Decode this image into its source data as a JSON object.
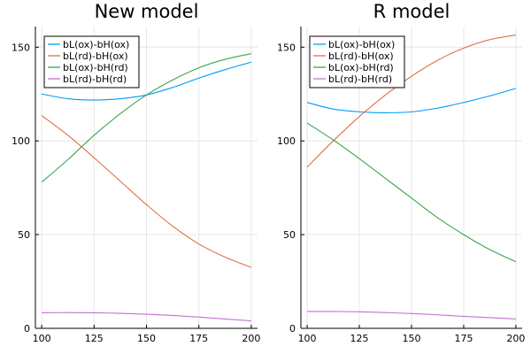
{
  "chart_data": [
    {
      "type": "line",
      "title": "New model",
      "xlim": [
        97,
        203
      ],
      "ylim": [
        0,
        161
      ],
      "xticks": [
        100,
        125,
        150,
        175,
        200
      ],
      "yticks": [
        0,
        50,
        100,
        150
      ],
      "legend_position": "top-left",
      "series": [
        {
          "name": "bL(ox)-bH(ox)",
          "color": "#009af9",
          "x": [
            100,
            112.5,
            125,
            137.5,
            150,
            162.5,
            175,
            187.5,
            200
          ],
          "y": [
            125,
            122.5,
            121.8,
            122.5,
            124.5,
            128.5,
            133.5,
            138,
            142
          ]
        },
        {
          "name": "bL(rd)-bH(ox)",
          "color": "#e26f46",
          "x": [
            100,
            112.5,
            125,
            137.5,
            150,
            162.5,
            175,
            187.5,
            200
          ],
          "y": [
            113.5,
            103,
            91,
            78.5,
            66,
            54.5,
            45,
            38,
            32.5
          ]
        },
        {
          "name": "bL(ox)-bH(rd)",
          "color": "#3da44d",
          "x": [
            100,
            112.5,
            125,
            137.5,
            150,
            162.5,
            175,
            187.5,
            200
          ],
          "y": [
            78,
            90,
            103,
            114.5,
            124.5,
            132.5,
            139,
            143.5,
            146.5
          ]
        },
        {
          "name": "bL(rd)-bH(rd)",
          "color": "#c271d2",
          "x": [
            100,
            112.5,
            125,
            137.5,
            150,
            162.5,
            175,
            187.5,
            200
          ],
          "y": [
            8.3,
            8.4,
            8.3,
            8,
            7.5,
            6.9,
            6,
            5,
            4
          ]
        }
      ]
    },
    {
      "type": "line",
      "title": "R model",
      "xlim": [
        97,
        203
      ],
      "ylim": [
        0,
        161
      ],
      "xticks": [
        100,
        125,
        150,
        175,
        200
      ],
      "yticks": [
        0,
        50,
        100,
        150
      ],
      "legend_position": "top-left",
      "series": [
        {
          "name": "bL(ox)-bH(ox)",
          "color": "#009af9",
          "x": [
            100,
            112.5,
            125,
            137.5,
            150,
            162.5,
            175,
            187.5,
            200
          ],
          "y": [
            120.5,
            117,
            115.5,
            115,
            115.5,
            117.5,
            120.5,
            124,
            128
          ]
        },
        {
          "name": "bL(rd)-bH(ox)",
          "color": "#e26f46",
          "x": [
            100,
            112.5,
            125,
            137.5,
            150,
            162.5,
            175,
            187.5,
            200
          ],
          "y": [
            86,
            100,
            113,
            124.5,
            134.5,
            143,
            149.5,
            154,
            156.5
          ]
        },
        {
          "name": "bL(ox)-bH(rd)",
          "color": "#3da44d",
          "x": [
            100,
            112.5,
            125,
            137.5,
            150,
            162.5,
            175,
            187.5,
            200
          ],
          "y": [
            109.5,
            100.5,
            90.5,
            80,
            69.5,
            59,
            50,
            42,
            35.5
          ]
        },
        {
          "name": "bL(rd)-bH(rd)",
          "color": "#c271d2",
          "x": [
            100,
            112.5,
            125,
            137.5,
            150,
            162.5,
            175,
            187.5,
            200
          ],
          "y": [
            9,
            9,
            8.8,
            8.4,
            7.9,
            7.2,
            6.4,
            5.7,
            5
          ]
        }
      ]
    }
  ]
}
